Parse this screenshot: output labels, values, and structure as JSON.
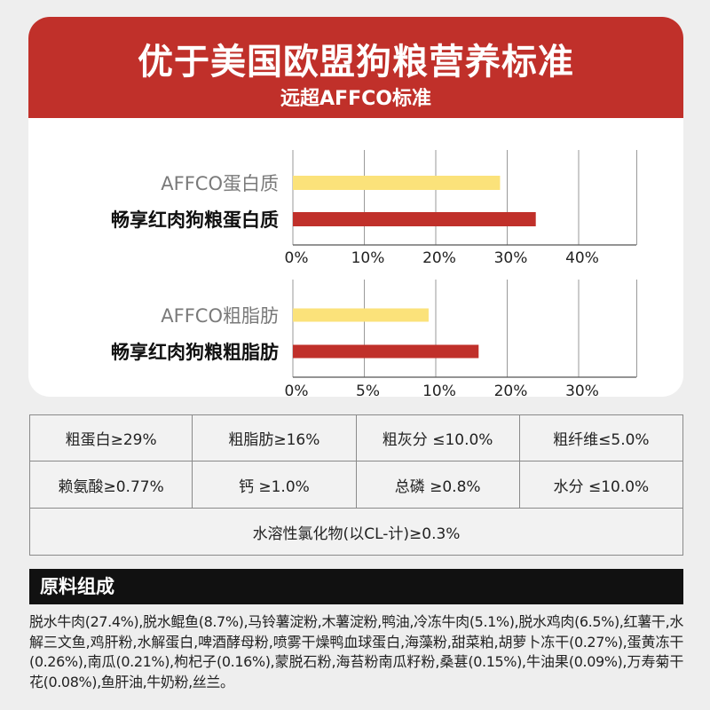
{
  "header": {
    "title": "优于美国欧盟狗粮营养标准",
    "subtitle": "远超AFFCO标准"
  },
  "colors": {
    "red": "#c0302a",
    "yellow": "#fbe27a",
    "gray_label": "#7a7a7a"
  },
  "chart_data": [
    {
      "type": "bar",
      "orientation": "horizontal",
      "categories": [
        "AFFCO蛋白质",
        "畅享红肉狗粮蛋白质"
      ],
      "values": [
        29,
        34
      ],
      "xlim": [
        0,
        40
      ],
      "ticks": [
        "0%",
        "10%",
        "20%",
        "30%",
        "40%"
      ],
      "tick_values": [
        0,
        10,
        20,
        30,
        40
      ],
      "grid": true
    },
    {
      "type": "bar",
      "orientation": "horizontal",
      "categories": [
        "AFFCO粗脂肪",
        "畅享红肉狗粮粗脂肪"
      ],
      "values": [
        9.5,
        16
      ],
      "xlim": [
        0,
        30
      ],
      "ticks": [
        "0%",
        "5%",
        "10%",
        "20%",
        "30%"
      ],
      "tick_values": [
        0,
        5,
        10,
        20,
        30
      ],
      "grid": true
    }
  ],
  "stats": {
    "row1": [
      "粗蛋白≥29%",
      "粗脂肪≥16%",
      "粗灰分 ≤10.0%",
      "粗纤维≤5.0%"
    ],
    "row2": [
      "赖氨酸≥0.77%",
      "钙 ≥1.0%",
      "总磷 ≥0.8%",
      "水分 ≤10.0%"
    ],
    "row3": "水溶性氯化物(以CL-计)≥0.3%"
  },
  "ingredients": {
    "heading": "原料组成",
    "text": "脱水牛肉(27.4%),脱水鲲鱼(8.7%),马铃薯淀粉,木薯淀粉,鸭油,冷冻牛肉(5.1%),脱水鸡肉(6.5%),红薯干,水解三文鱼,鸡肝粉,水解蛋白,啤酒酵母粉,喷雾干燥鸭血球蛋白,海藻粉,甜菜粕,胡萝卜冻干(0.27%),蛋黄冻干(0.26%),南瓜(0.21%),枸杞子(0.16%),蒙脱石粉,海苔粉南瓜籽粉,桑葚(0.15%),牛油果(0.09%),万寿菊干花(0.08%),鱼肝油,牛奶粉,丝兰。"
  }
}
